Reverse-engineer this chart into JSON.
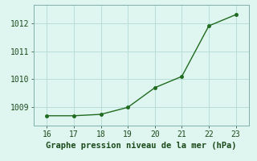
{
  "x": [
    16,
    17,
    18,
    19,
    20,
    21,
    22,
    23
  ],
  "y": [
    1008.7,
    1008.7,
    1008.75,
    1009.0,
    1009.7,
    1010.1,
    1011.9,
    1012.3
  ],
  "line_color": "#1f6b1f",
  "marker_color": "#1f6b1f",
  "bg_color": "#dff5f0",
  "grid_color": "#b8ddd8",
  "xlabel": "Graphe pression niveau de la mer (hPa)",
  "xlim": [
    15.5,
    23.5
  ],
  "ylim": [
    1008.35,
    1012.65
  ],
  "xticks": [
    16,
    17,
    18,
    19,
    20,
    21,
    22,
    23
  ],
  "yticks": [
    1009,
    1010,
    1011,
    1012
  ],
  "xlabel_fontsize": 7.5,
  "tick_fontsize": 7,
  "marker_size": 3,
  "line_width": 1.0
}
